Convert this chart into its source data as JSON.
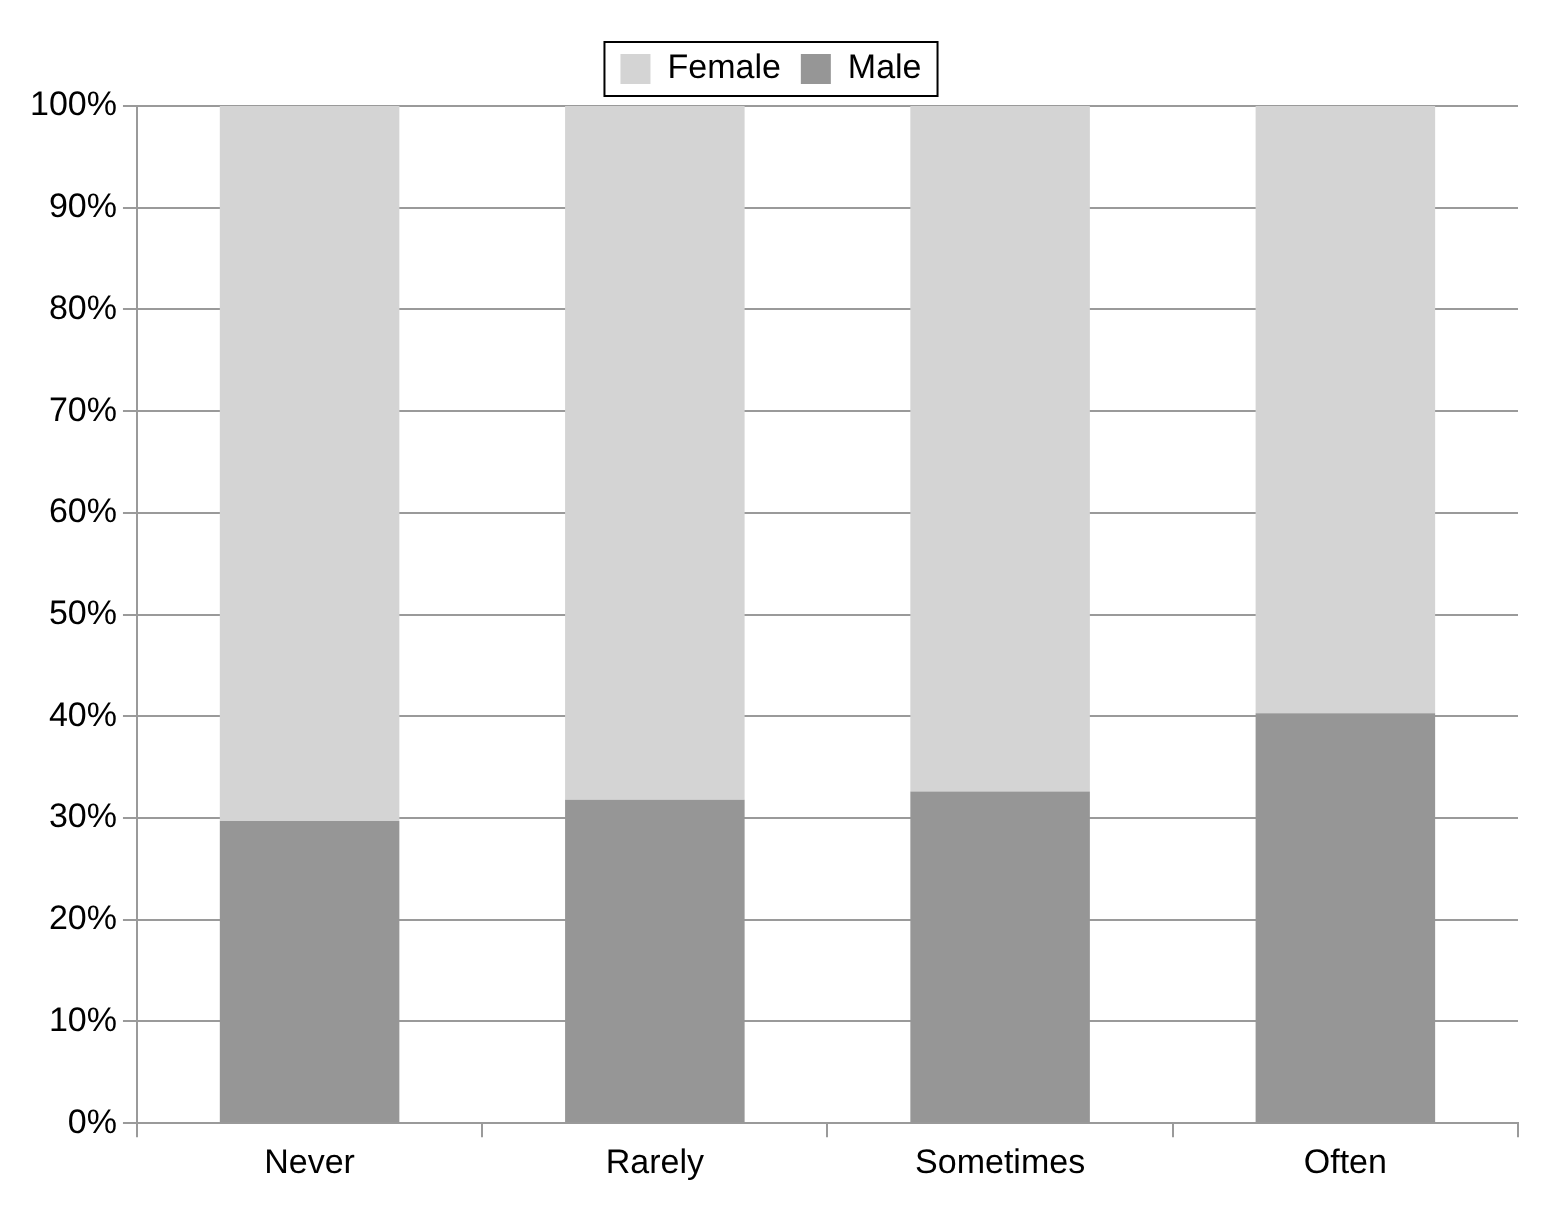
{
  "chart_data": {
    "type": "bar",
    "stacked": true,
    "categories": [
      "Never",
      "Rarely",
      "Sometimes",
      "Often"
    ],
    "series": [
      {
        "name": "Male",
        "color": "#969696",
        "values": [
          29.7,
          31.8,
          32.6,
          40.3
        ]
      },
      {
        "name": "Female",
        "color": "#d4d4d4",
        "values": [
          70.3,
          68.2,
          67.4,
          59.7
        ]
      }
    ],
    "ylim": [
      0,
      100
    ],
    "yticks": [
      {
        "value": 0,
        "label": "0%"
      },
      {
        "value": 10,
        "label": "10%"
      },
      {
        "value": 20,
        "label": "20%"
      },
      {
        "value": 30,
        "label": "30%"
      },
      {
        "value": 40,
        "label": "40%"
      },
      {
        "value": 50,
        "label": "50%"
      },
      {
        "value": 60,
        "label": "60%"
      },
      {
        "value": 70,
        "label": "70%"
      },
      {
        "value": 80,
        "label": "80%"
      },
      {
        "value": 90,
        "label": "90%"
      },
      {
        "value": 100,
        "label": "100%"
      }
    ],
    "grid": "y",
    "legend": "top"
  }
}
